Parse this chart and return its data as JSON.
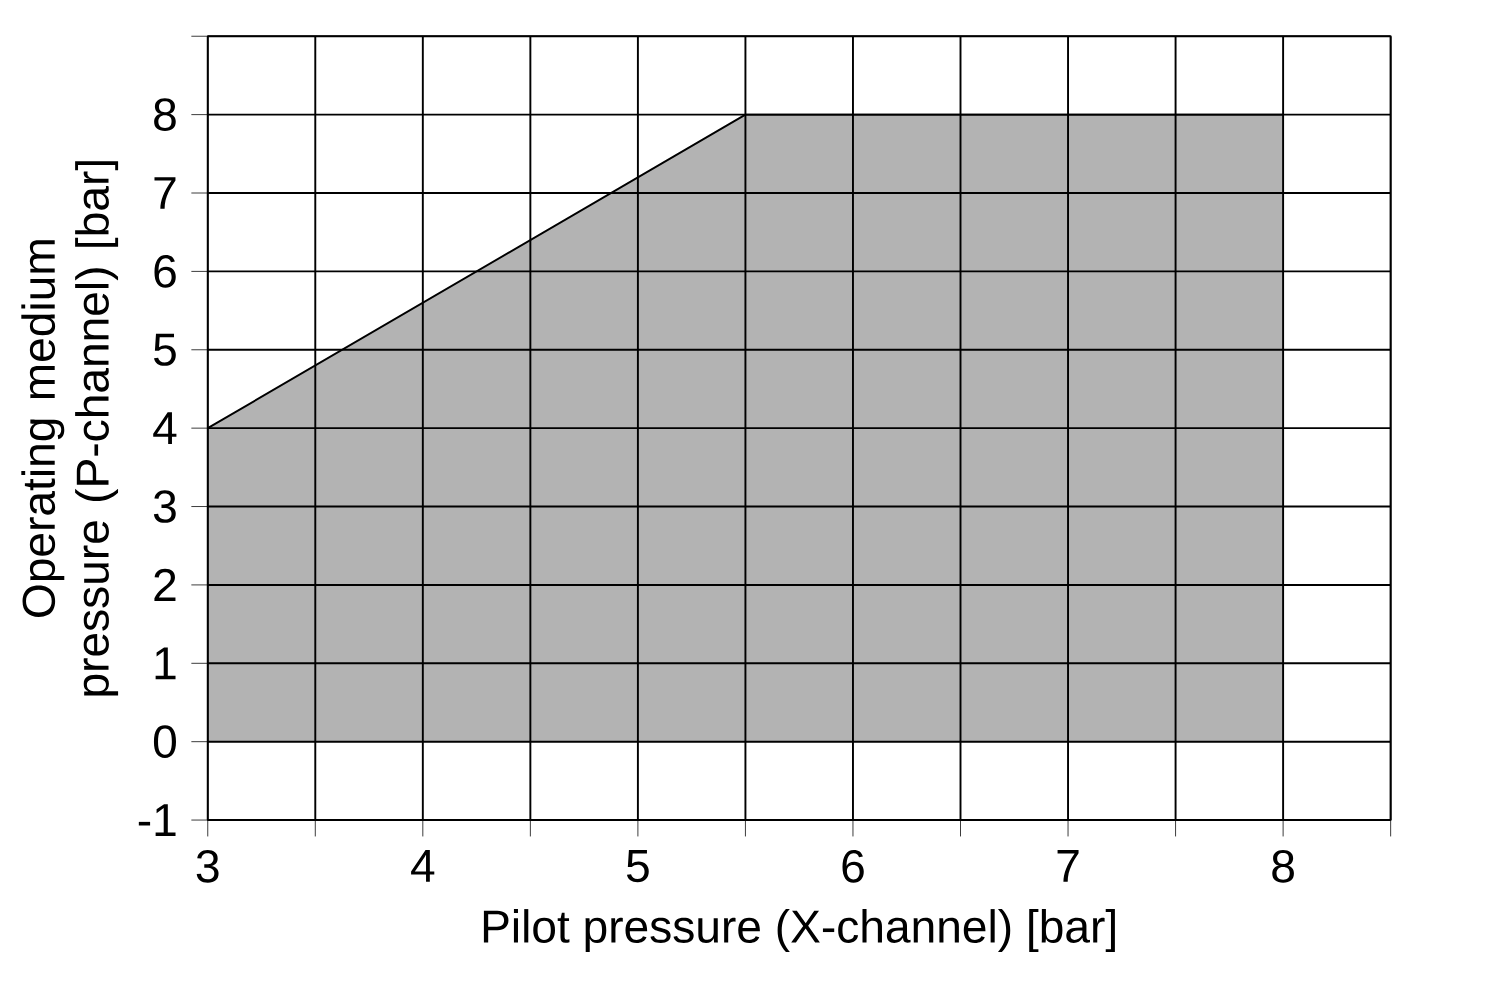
{
  "chart_data": {
    "type": "area",
    "xlabel": "Pilot pressure (X-channel) [bar]",
    "ylabel": "Operating medium pressure (P-channel) [bar]",
    "x": [
      3,
      5.5,
      8
    ],
    "values": [
      4,
      8,
      8
    ],
    "color": "#b3b3b3",
    "xlim": [
      3,
      8.5
    ],
    "ylim": [
      -1,
      9
    ],
    "xticks": [
      3,
      {
        "value": 3.5,
        "label": null
      },
      4,
      {
        "value": 4.5,
        "label": null
      },
      5,
      {
        "value": 5.5,
        "label": null
      },
      6,
      {
        "value": 6.5,
        "label": null
      },
      7,
      {
        "value": 7.5,
        "label": null
      },
      8,
      {
        "value": 8.5,
        "label": null
      }
    ],
    "yticks": [
      -1,
      0,
      1,
      2,
      3,
      4,
      5,
      6,
      7,
      8,
      {
        "value": 9,
        "label": null
      }
    ],
    "grid": true
  }
}
